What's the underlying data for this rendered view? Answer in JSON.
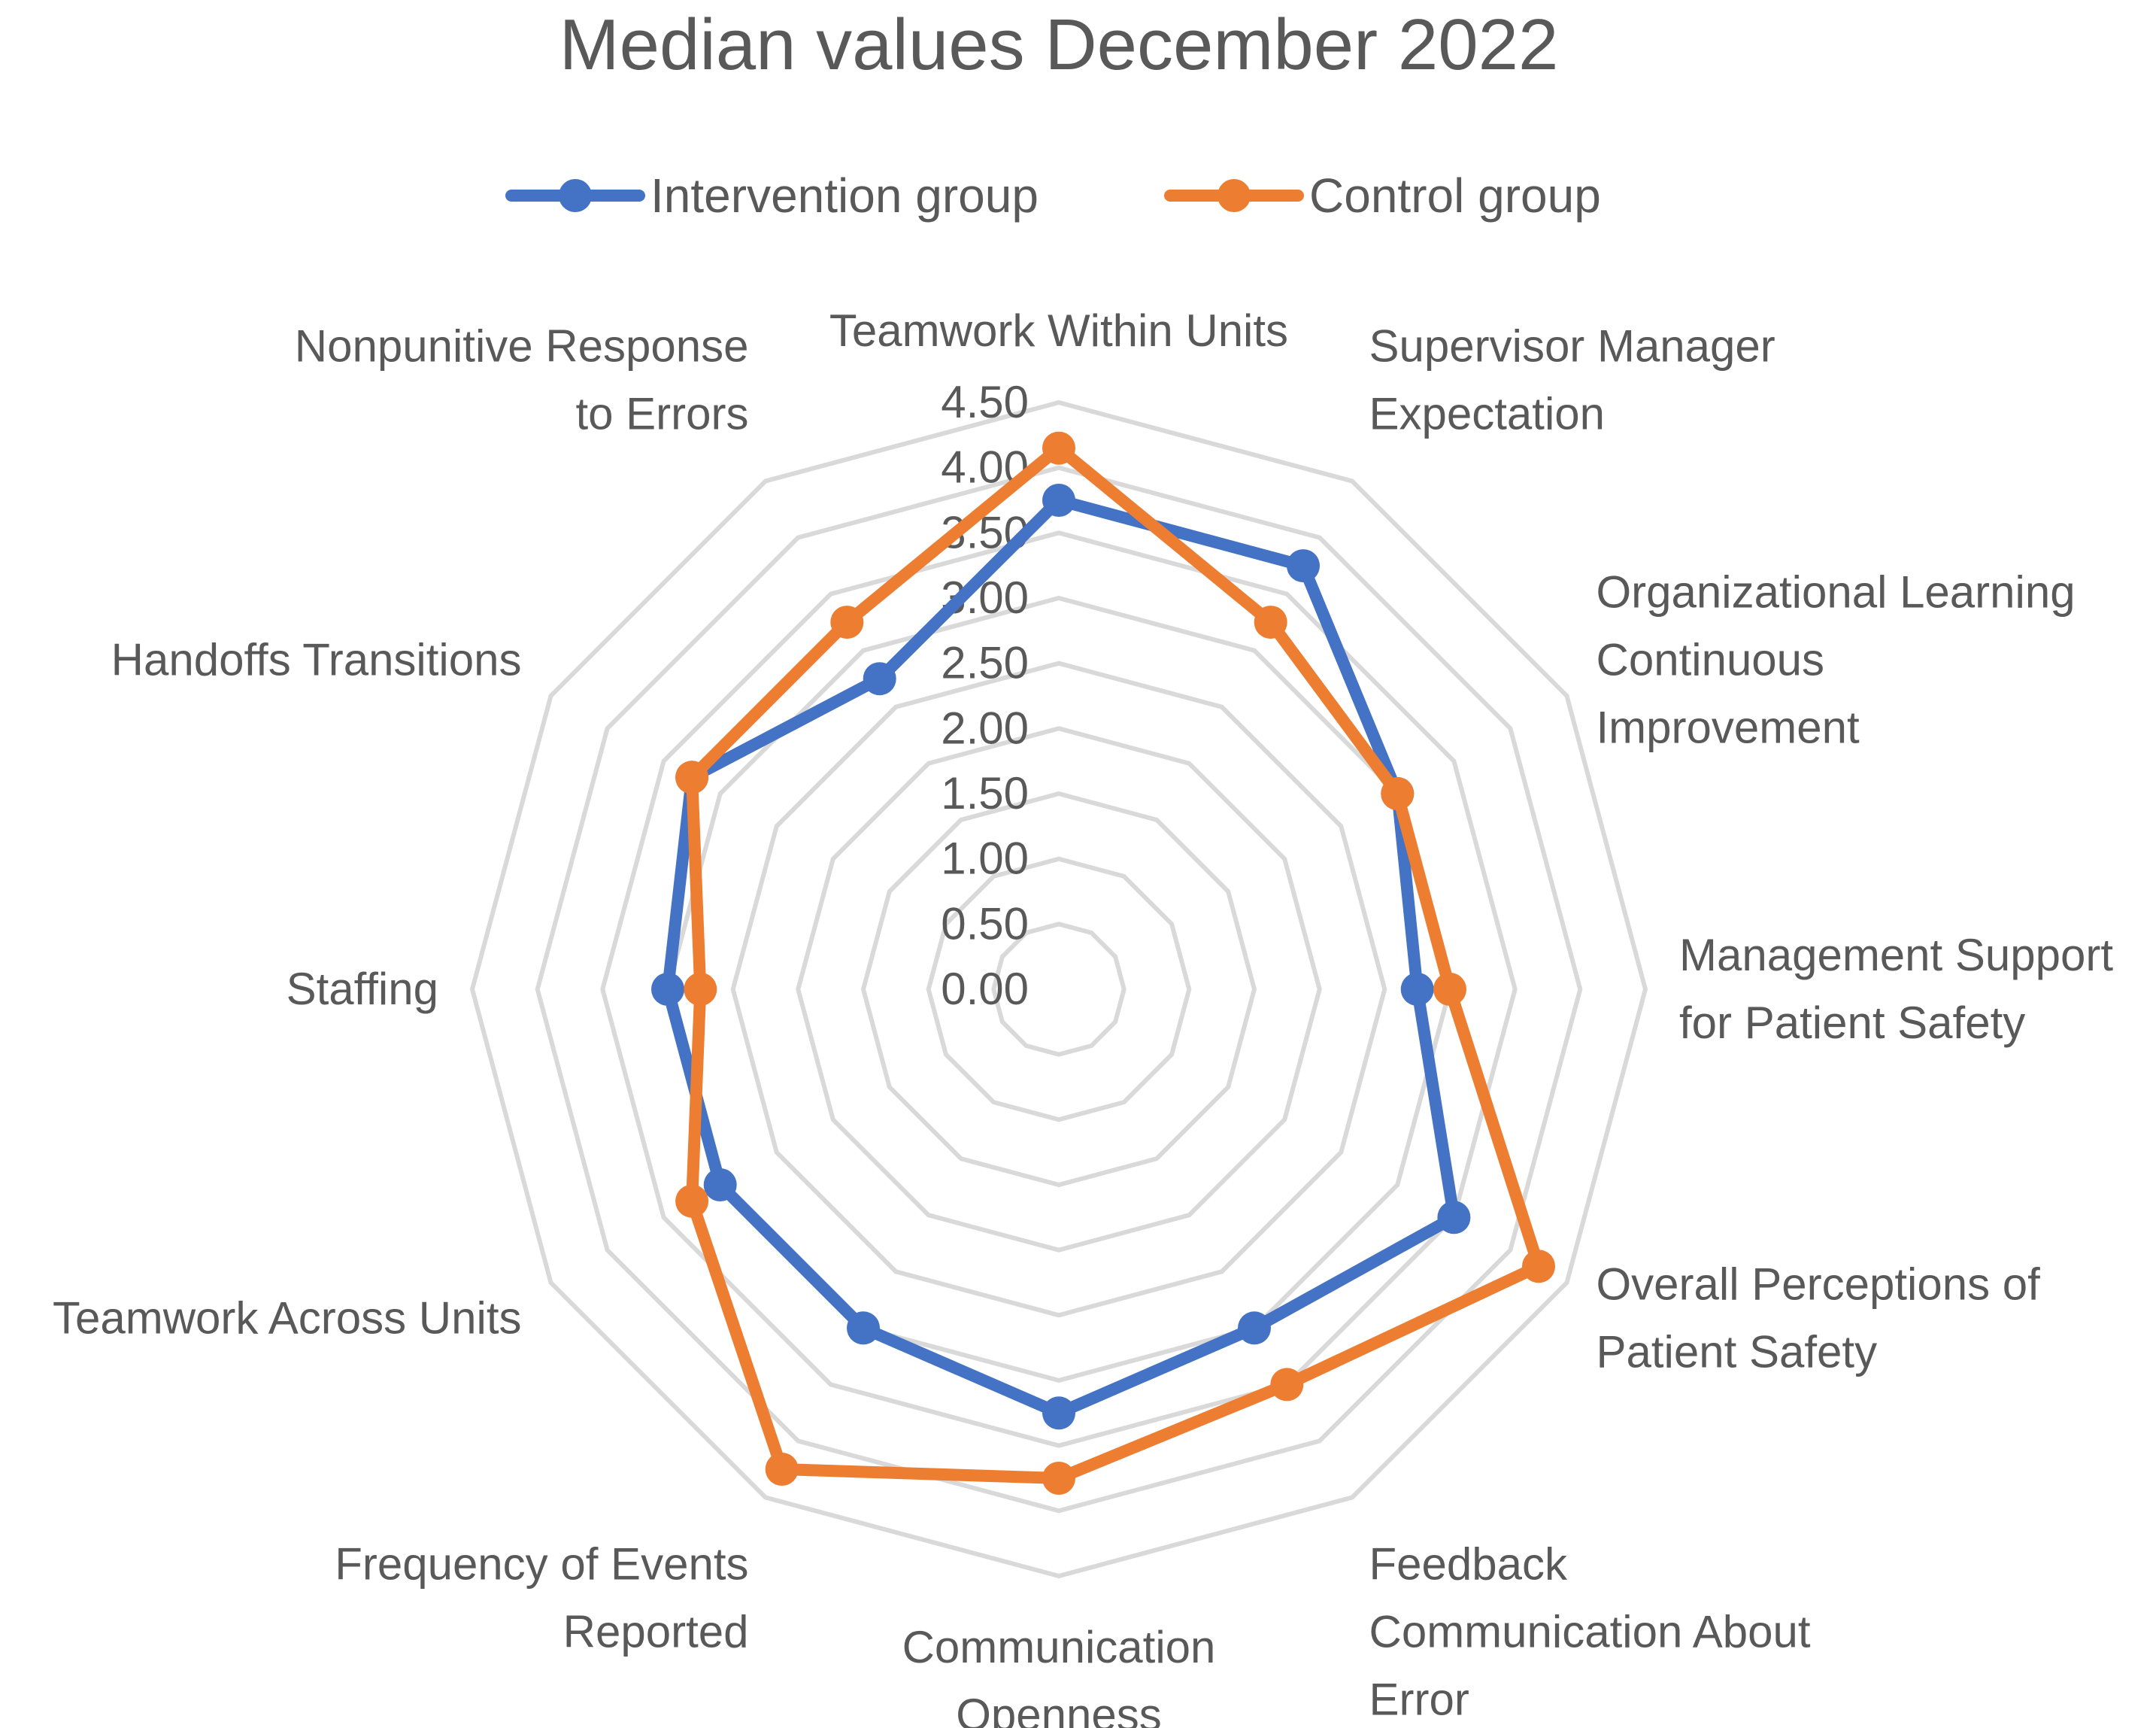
{
  "chart_data": {
    "type": "radar",
    "title": "Median values December 2022",
    "categories": [
      "Teamwork Within Units",
      "Supervisor Manager Expectation",
      "Organizational Learning Continuous Improvement",
      "Management Support for Patient Safety",
      "Overall Perceptions of Patient Safety",
      "Feedback Communication About Error",
      "Communication Openness",
      "Frequency of Events Reported",
      "Teamwork Across Units",
      "Staffing",
      "Handoffs Transitions",
      "Nonpunitive Response to Errors"
    ],
    "category_label_lines": [
      [
        "Teamwork Within Units"
      ],
      [
        "Supervisor Manager",
        "Expectation"
      ],
      [
        "Organizational Learning",
        "Continuous",
        "Improvement"
      ],
      [
        "Management Support",
        "for Patient Safety"
      ],
      [
        "Overall Perceptions of",
        "Patient Safety"
      ],
      [
        "Feedback",
        "Communication About",
        "Error"
      ],
      [
        "Communication",
        "Openness"
      ],
      [
        "Frequency of Events",
        "Reported"
      ],
      [
        "Teamwork Across Units"
      ],
      [
        "Staffing"
      ],
      [
        "Handoffs Transitions"
      ],
      [
        "Nonpunitive Response",
        "to Errors"
      ]
    ],
    "series": [
      {
        "name": "Intervention group",
        "color": "#4472C4",
        "values": [
          3.75,
          3.75,
          3.0,
          2.75,
          3.5,
          3.0,
          3.25,
          3.0,
          3.0,
          3.0,
          3.25,
          2.75
        ]
      },
      {
        "name": "Control group",
        "color": "#ED7D31",
        "values": [
          4.15,
          3.25,
          3.0,
          3.0,
          4.25,
          3.5,
          3.75,
          4.25,
          3.25,
          2.75,
          3.25,
          3.25
        ]
      }
    ],
    "rmin": 0,
    "rmax": 4.5,
    "tick_step": 0.5,
    "tick_labels": [
      "0.00",
      "0.50",
      "1.00",
      "1.50",
      "2.00",
      "2.50",
      "3.00",
      "3.50",
      "4.00",
      "4.50"
    ],
    "legend_position": "top"
  }
}
